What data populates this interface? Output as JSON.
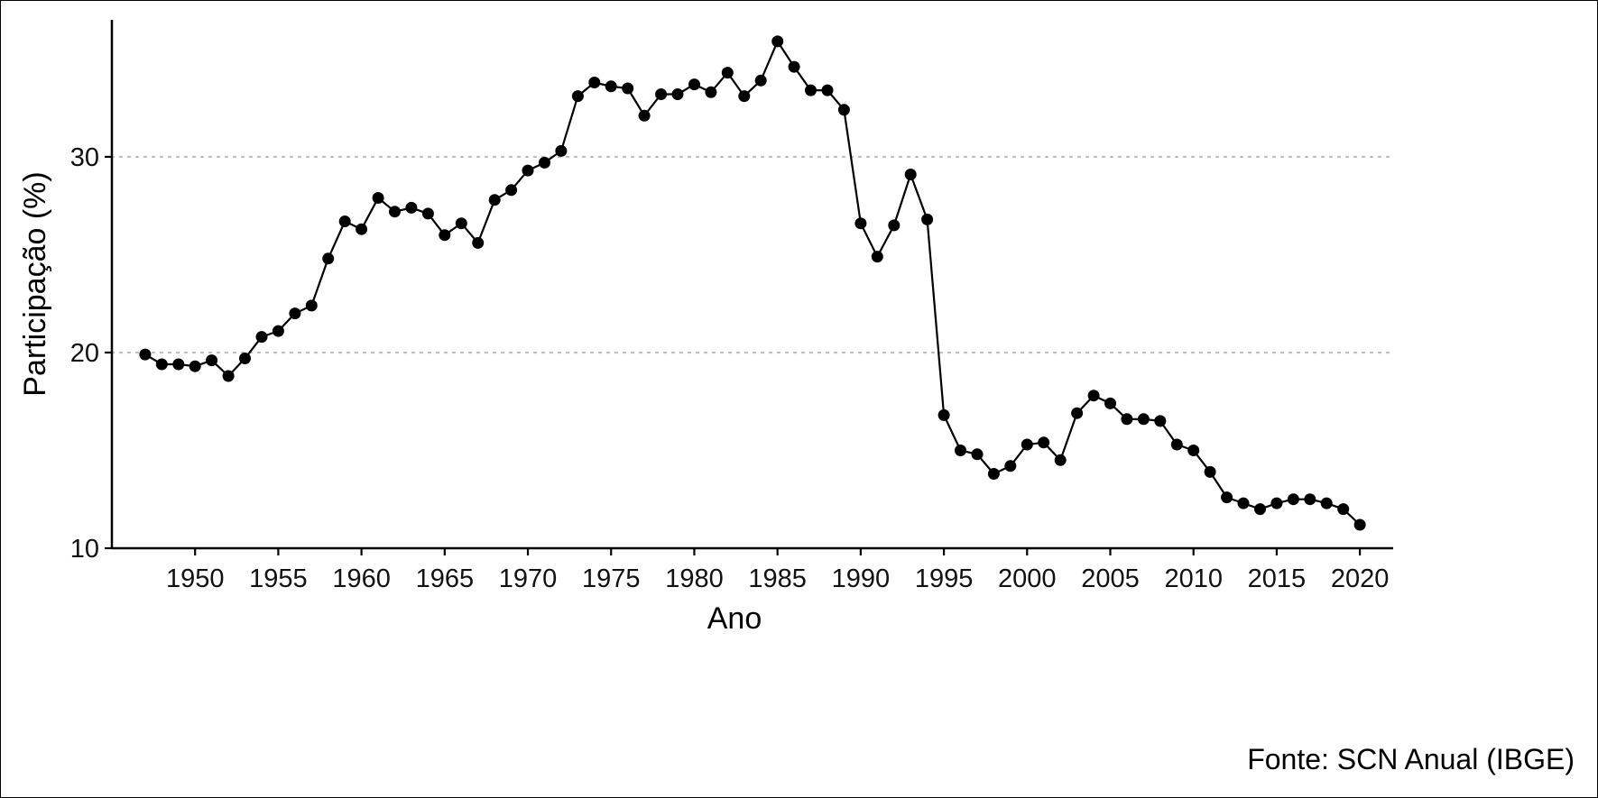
{
  "chart_data": {
    "type": "line",
    "xlabel": "Ano",
    "ylabel": "Participação (%)",
    "caption": "Fonte: SCN Anual (IBGE)",
    "xlim": [
      1945,
      2022
    ],
    "ylim": [
      10,
      37
    ],
    "x_ticks": [
      1950,
      1955,
      1960,
      1965,
      1970,
      1975,
      1980,
      1985,
      1990,
      1995,
      2000,
      2005,
      2010,
      2015,
      2020
    ],
    "y_ticks": [
      10,
      20,
      30
    ],
    "grid": "horizontal dotted at 20 and 30",
    "line_color": "#000000",
    "point_color": "#000000",
    "x": [
      1947,
      1948,
      1949,
      1950,
      1951,
      1952,
      1953,
      1954,
      1955,
      1956,
      1957,
      1958,
      1959,
      1960,
      1961,
      1962,
      1963,
      1964,
      1965,
      1966,
      1967,
      1968,
      1969,
      1970,
      1971,
      1972,
      1973,
      1974,
      1975,
      1976,
      1977,
      1978,
      1979,
      1980,
      1981,
      1982,
      1983,
      1984,
      1985,
      1986,
      1987,
      1988,
      1989,
      1990,
      1991,
      1992,
      1993,
      1994,
      1995,
      1996,
      1997,
      1998,
      1999,
      2000,
      2001,
      2002,
      2003,
      2004,
      2005,
      2006,
      2007,
      2008,
      2009,
      2010,
      2011,
      2012,
      2013,
      2014,
      2015,
      2016,
      2017,
      2018,
      2019,
      2020
    ],
    "y": [
      19.9,
      19.4,
      19.4,
      19.3,
      19.6,
      18.8,
      19.7,
      20.8,
      21.1,
      22.0,
      22.4,
      24.8,
      26.7,
      26.3,
      27.9,
      27.2,
      27.4,
      27.1,
      26.0,
      26.6,
      25.6,
      27.8,
      28.3,
      29.3,
      29.7,
      30.3,
      33.1,
      33.8,
      33.6,
      33.5,
      32.1,
      33.2,
      33.2,
      33.7,
      33.3,
      34.3,
      33.1,
      33.9,
      35.9,
      34.6,
      33.4,
      33.4,
      32.4,
      26.6,
      24.9,
      26.5,
      29.1,
      26.8,
      16.8,
      15.0,
      14.8,
      13.8,
      14.2,
      15.3,
      15.4,
      14.5,
      16.9,
      17.8,
      17.4,
      16.6,
      16.6,
      16.5,
      15.3,
      15.0,
      13.9,
      12.6,
      12.3,
      12.0,
      12.3,
      12.5,
      12.5,
      12.3,
      12.0,
      11.2
    ]
  }
}
